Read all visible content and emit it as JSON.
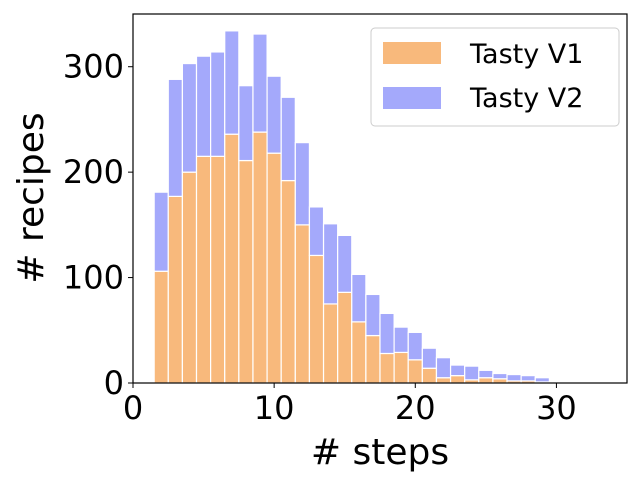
{
  "chart_data": {
    "type": "bar",
    "title": "",
    "xlabel": "# steps",
    "ylabel": "# recipes",
    "xlim": [
      0,
      35
    ],
    "ylim": [
      0,
      350
    ],
    "xticks": [
      "0",
      "10",
      "20",
      "30"
    ],
    "yticks": [
      "0",
      "100",
      "200",
      "300"
    ],
    "legend_position": "top-right",
    "x": [
      2,
      3,
      4,
      5,
      6,
      7,
      8,
      9,
      10,
      11,
      12,
      13,
      14,
      15,
      16,
      17,
      18,
      19,
      20,
      21,
      22,
      23,
      24,
      25,
      26,
      27,
      28,
      29,
      30,
      31,
      32,
      33
    ],
    "series": [
      {
        "name": "Tasty V1",
        "color": "#f8b97c",
        "values": [
          106,
          177,
          200,
          215,
          215,
          236,
          211,
          238,
          218,
          192,
          150,
          121,
          75,
          86,
          58,
          45,
          28,
          29,
          22,
          14,
          5,
          7,
          3,
          5,
          4,
          2,
          2,
          1,
          0,
          0,
          0,
          0
        ]
      },
      {
        "name": "Tasty V2",
        "color": "#a4a9fb",
        "values": [
          75,
          111,
          103,
          95,
          99,
          98,
          71,
          93,
          73,
          79,
          78,
          46,
          76,
          54,
          45,
          39,
          38,
          24,
          26,
          19,
          19,
          10,
          13,
          7,
          5,
          6,
          5,
          4,
          0,
          1,
          0,
          0
        ]
      }
    ]
  }
}
